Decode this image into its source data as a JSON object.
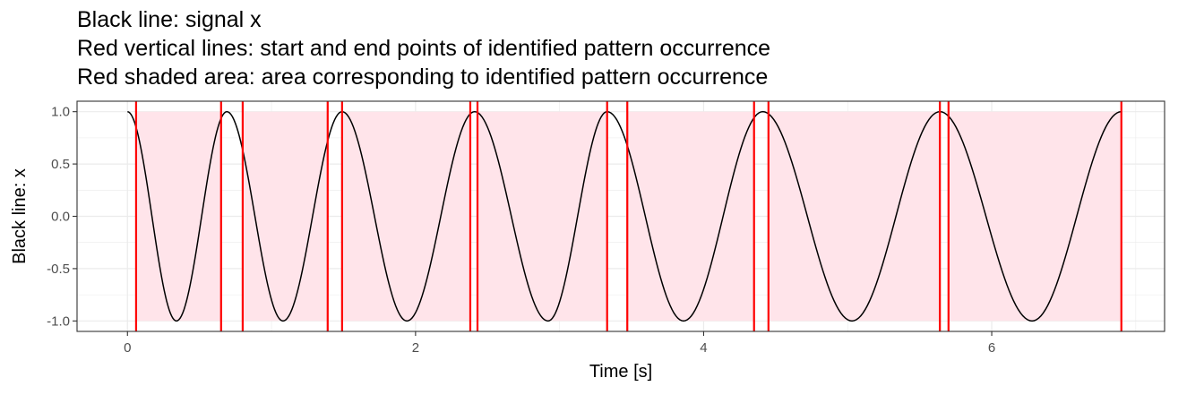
{
  "chart_data": {
    "type": "line",
    "title_lines": [
      "Black line: signal x",
      "Red vertical lines: start and end points of identified pattern occurrence",
      "Red shaded area: area corresponding to identified pattern occurrence"
    ],
    "xlabel": "Time [s]",
    "ylabel": "Black line: x",
    "xlim": [
      -0.35,
      7.2
    ],
    "ylim": [
      -1.1,
      1.1
    ],
    "x_ticks": [
      0,
      2,
      4,
      6
    ],
    "x_tick_labels": [
      "0",
      "2",
      "4",
      "6"
    ],
    "y_ticks": [
      -1.0,
      -0.5,
      0.0,
      0.5,
      1.0
    ],
    "y_tick_labels": [
      "-1.0",
      "-0.5",
      "0.0",
      "0.5",
      "1.0"
    ],
    "grid": true,
    "legend": "none",
    "series": [
      {
        "color": "#000000",
        "x": [
          0.0,
          0.34,
          0.69,
          1.08,
          1.49,
          1.94,
          2.41,
          2.92,
          3.33,
          3.86,
          4.41,
          5.03,
          5.64,
          6.28,
          6.9
        ],
        "y": [
          1.0,
          -1.0,
          1.0,
          -1.0,
          1.0,
          -1.0,
          1.0,
          -1.0,
          1.0,
          -1.0,
          1.0,
          -1.0,
          1.0,
          -1.0,
          1.0
        ],
        "interpolation": "cosine between alternating extrema"
      }
    ],
    "pattern_occurrences": [
      {
        "start": 0.06,
        "end": 0.65
      },
      {
        "start": 0.8,
        "end": 1.39
      },
      {
        "start": 1.49,
        "end": 2.38
      },
      {
        "start": 2.43,
        "end": 3.33
      },
      {
        "start": 3.47,
        "end": 4.35
      },
      {
        "start": 4.45,
        "end": 5.64
      },
      {
        "start": 5.7,
        "end": 6.9
      }
    ],
    "colors": {
      "signal": "#000000",
      "boundary": "#ff0000",
      "shade": "#ffe4ea",
      "grid": "#ebebeb",
      "panel_border": "#333333"
    }
  }
}
